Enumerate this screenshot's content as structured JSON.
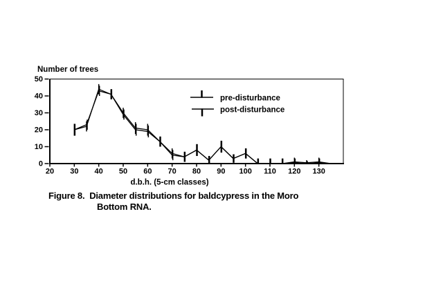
{
  "page": {
    "background": "#ffffff",
    "ink": "#000000"
  },
  "chart_data": {
    "type": "line",
    "title": "",
    "ylabel": "Number of trees",
    "xlabel": "d.b.h. (5-cm classes)",
    "xlim": [
      20,
      140
    ],
    "ylim": [
      0,
      50
    ],
    "x_ticks": [
      20,
      30,
      40,
      50,
      60,
      70,
      80,
      90,
      100,
      110,
      120,
      130
    ],
    "y_ticks": [
      0,
      10,
      20,
      30,
      40,
      50
    ],
    "grid": false,
    "legend_position": "upper-right-inside",
    "x": [
      30,
      35,
      40,
      45,
      50,
      55,
      60,
      65,
      70,
      75,
      80,
      85,
      90,
      95,
      100,
      105,
      110,
      115,
      120,
      125,
      130,
      135
    ],
    "series": [
      {
        "name": "pre-disturbance",
        "error_bar_direction": "up",
        "values": [
          20,
          22,
          44,
          41,
          30,
          21,
          20,
          13,
          6,
          4,
          8,
          2,
          10,
          3,
          6,
          0,
          0,
          0,
          1,
          0.5,
          1,
          0
        ],
        "err": [
          3.5,
          3,
          3,
          3,
          3,
          3.5,
          3.5,
          3,
          3,
          3,
          3.5,
          2.5,
          3.5,
          2.5,
          3,
          3,
          3,
          3,
          2.5,
          1.5,
          2.5,
          0
        ]
      },
      {
        "name": "post-disturbance",
        "error_bar_direction": "down",
        "values": [
          20,
          23,
          43,
          41,
          29,
          20,
          19,
          13,
          5,
          4,
          8,
          2,
          10,
          3,
          6,
          0,
          0,
          0,
          0.5,
          0,
          0.5,
          0
        ],
        "err": [
          3.5,
          3,
          3,
          3,
          3,
          3.5,
          3.5,
          3,
          3,
          3,
          3.5,
          2.5,
          3.5,
          2.5,
          3,
          3,
          3,
          3,
          2.5,
          1.5,
          2.5,
          0
        ]
      }
    ]
  },
  "caption": {
    "line1": "Figure 8.  Diameter distributions for baldcypress in the Moro",
    "line2": "Bottom RNA."
  }
}
